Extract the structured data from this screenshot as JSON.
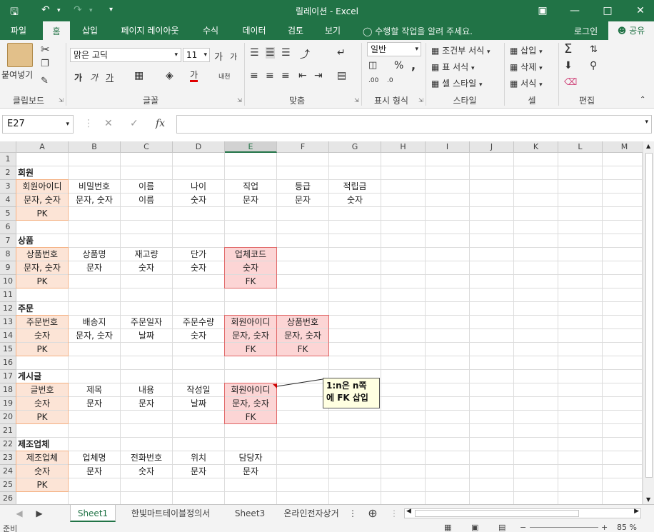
{
  "window": {
    "title": "릴레이션 - Excel",
    "qa_icons": [
      "save-icon",
      "undo-icon",
      "redo-icon",
      "customize-icon"
    ]
  },
  "ribbon_tabs": [
    "파일",
    "홈",
    "삽입",
    "페이지 레이아웃",
    "수식",
    "데이터",
    "검토",
    "보기"
  ],
  "tell_me": "수행할 작업을 알려 주세요.",
  "login": "로그인",
  "share": "공유",
  "ribbon": {
    "clipboard": {
      "paste": "붙여넣기",
      "label": "클립보드"
    },
    "font": {
      "name": "맑은 고딕",
      "size": "11",
      "label": "글꼴",
      "bold": "가",
      "italic": "가",
      "underline": "가",
      "grow": "가",
      "shrink": "가",
      "color_a": "가",
      "phonetic": "내천"
    },
    "align": {
      "label": "맞춤"
    },
    "number": {
      "format": "일반",
      "label": "표시 형식",
      "percent": "%",
      "comma": ",",
      "inc_dec": ".00",
      "dec_dec": ".0"
    },
    "styles": {
      "cond": "조건부 서식",
      "table": "표 서식",
      "cell": "셀 스타일",
      "label": "스타일"
    },
    "cells": {
      "insert": "삽입",
      "delete": "삭제",
      "format": "서식",
      "label": "셀"
    },
    "editing": {
      "label": "편집"
    }
  },
  "formula_bar": {
    "name_box": "E27",
    "fx": "fx",
    "value": ""
  },
  "columns": [
    "A",
    "B",
    "C",
    "D",
    "E",
    "F",
    "G",
    "H",
    "I",
    "J",
    "K",
    "L",
    "M"
  ],
  "selected_column": "E",
  "rows": [
    "1",
    "2",
    "3",
    "4",
    "5",
    "6",
    "7",
    "8",
    "9",
    "10",
    "11",
    "12",
    "13",
    "14",
    "15",
    "16",
    "17",
    "18",
    "19",
    "20",
    "21",
    "22",
    "23",
    "24",
    "25",
    "26"
  ],
  "cells": [
    {
      "r": 2,
      "c": "A",
      "v": "회원",
      "style": "left"
    },
    {
      "r": 3,
      "c": "A",
      "v": "회원아이디",
      "style": "pk"
    },
    {
      "r": 3,
      "c": "B",
      "v": "비밀번호"
    },
    {
      "r": 3,
      "c": "C",
      "v": "이름"
    },
    {
      "r": 3,
      "c": "D",
      "v": "나이"
    },
    {
      "r": 3,
      "c": "E",
      "v": "직업"
    },
    {
      "r": 3,
      "c": "F",
      "v": "등급"
    },
    {
      "r": 3,
      "c": "G",
      "v": "적립금"
    },
    {
      "r": 4,
      "c": "A",
      "v": "문자, 숫자",
      "style": "pk"
    },
    {
      "r": 4,
      "c": "B",
      "v": "문자, 숫자"
    },
    {
      "r": 4,
      "c": "C",
      "v": "이름"
    },
    {
      "r": 4,
      "c": "D",
      "v": "숫자"
    },
    {
      "r": 4,
      "c": "E",
      "v": "문자"
    },
    {
      "r": 4,
      "c": "F",
      "v": "문자"
    },
    {
      "r": 4,
      "c": "G",
      "v": "숫자"
    },
    {
      "r": 5,
      "c": "A",
      "v": "PK",
      "style": "pk"
    },
    {
      "r": 7,
      "c": "A",
      "v": "상품",
      "style": "left"
    },
    {
      "r": 8,
      "c": "A",
      "v": "상품번호",
      "style": "pk"
    },
    {
      "r": 8,
      "c": "B",
      "v": "상품명"
    },
    {
      "r": 8,
      "c": "C",
      "v": "재고량"
    },
    {
      "r": 8,
      "c": "D",
      "v": "단가"
    },
    {
      "r": 8,
      "c": "E",
      "v": "업체코드",
      "style": "fk"
    },
    {
      "r": 9,
      "c": "A",
      "v": "문자, 숫자",
      "style": "pk"
    },
    {
      "r": 9,
      "c": "B",
      "v": "문자"
    },
    {
      "r": 9,
      "c": "C",
      "v": "숫자"
    },
    {
      "r": 9,
      "c": "D",
      "v": "숫자"
    },
    {
      "r": 9,
      "c": "E",
      "v": "숫자",
      "style": "fk"
    },
    {
      "r": 10,
      "c": "A",
      "v": "PK",
      "style": "pk"
    },
    {
      "r": 10,
      "c": "E",
      "v": "FK",
      "style": "fk"
    },
    {
      "r": 12,
      "c": "A",
      "v": "주문",
      "style": "left"
    },
    {
      "r": 13,
      "c": "A",
      "v": "주문번호",
      "style": "pk"
    },
    {
      "r": 13,
      "c": "B",
      "v": "배송지"
    },
    {
      "r": 13,
      "c": "C",
      "v": "주문일자"
    },
    {
      "r": 13,
      "c": "D",
      "v": "주문수량"
    },
    {
      "r": 13,
      "c": "E",
      "v": "회원아이디",
      "style": "fk"
    },
    {
      "r": 13,
      "c": "F",
      "v": "상품번호",
      "style": "fk"
    },
    {
      "r": 14,
      "c": "A",
      "v": "숫자",
      "style": "pk"
    },
    {
      "r": 14,
      "c": "B",
      "v": "문자, 숫자"
    },
    {
      "r": 14,
      "c": "C",
      "v": "날짜"
    },
    {
      "r": 14,
      "c": "D",
      "v": "숫자"
    },
    {
      "r": 14,
      "c": "E",
      "v": "문자, 숫자",
      "style": "fk"
    },
    {
      "r": 14,
      "c": "F",
      "v": "문자, 숫자",
      "style": "fk"
    },
    {
      "r": 15,
      "c": "A",
      "v": "PK",
      "style": "pk"
    },
    {
      "r": 15,
      "c": "E",
      "v": "FK",
      "style": "fk"
    },
    {
      "r": 15,
      "c": "F",
      "v": "FK",
      "style": "fk"
    },
    {
      "r": 17,
      "c": "A",
      "v": "게시글",
      "style": "left"
    },
    {
      "r": 18,
      "c": "A",
      "v": "글번호",
      "style": "pk"
    },
    {
      "r": 18,
      "c": "B",
      "v": "제목"
    },
    {
      "r": 18,
      "c": "C",
      "v": "내용"
    },
    {
      "r": 18,
      "c": "D",
      "v": "작성일"
    },
    {
      "r": 18,
      "c": "E",
      "v": "회원아이디",
      "style": "fk"
    },
    {
      "r": 19,
      "c": "A",
      "v": "숫자",
      "style": "pk"
    },
    {
      "r": 19,
      "c": "B",
      "v": "문자"
    },
    {
      "r": 19,
      "c": "C",
      "v": "문자"
    },
    {
      "r": 19,
      "c": "D",
      "v": "날짜"
    },
    {
      "r": 19,
      "c": "E",
      "v": "문자, 숫자",
      "style": "fk"
    },
    {
      "r": 20,
      "c": "A",
      "v": "PK",
      "style": "pk"
    },
    {
      "r": 20,
      "c": "E",
      "v": "FK",
      "style": "fk"
    },
    {
      "r": 22,
      "c": "A",
      "v": "제조업체",
      "style": "left"
    },
    {
      "r": 23,
      "c": "A",
      "v": "제조업체",
      "style": "pk"
    },
    {
      "r": 23,
      "c": "B",
      "v": "업체명"
    },
    {
      "r": 23,
      "c": "C",
      "v": "전화번호"
    },
    {
      "r": 23,
      "c": "D",
      "v": "위치"
    },
    {
      "r": 23,
      "c": "E",
      "v": "담당자"
    },
    {
      "r": 24,
      "c": "A",
      "v": "숫자",
      "style": "pk"
    },
    {
      "r": 24,
      "c": "B",
      "v": "문자"
    },
    {
      "r": 24,
      "c": "C",
      "v": "숫자"
    },
    {
      "r": 24,
      "c": "D",
      "v": "문자"
    },
    {
      "r": 24,
      "c": "E",
      "v": "문자"
    },
    {
      "r": 25,
      "c": "A",
      "v": "PK",
      "style": "pk"
    }
  ],
  "comment": {
    "line1": "1:n은 n쪽",
    "line2": "에 FK 삽입"
  },
  "sheets": [
    "Sheet1",
    "한빛마트테이블정의서",
    "Sheet3",
    "온라인전자상거"
  ],
  "active_sheet": "Sheet1",
  "status": {
    "ready": "준비",
    "zoom": "85 %"
  },
  "colors": {
    "excel_green": "#217346",
    "pk_fill": "#fce4d6",
    "fk_fill": "#fcd5d5",
    "fk_border": "#e06666",
    "pk_border": "#f4b183"
  }
}
